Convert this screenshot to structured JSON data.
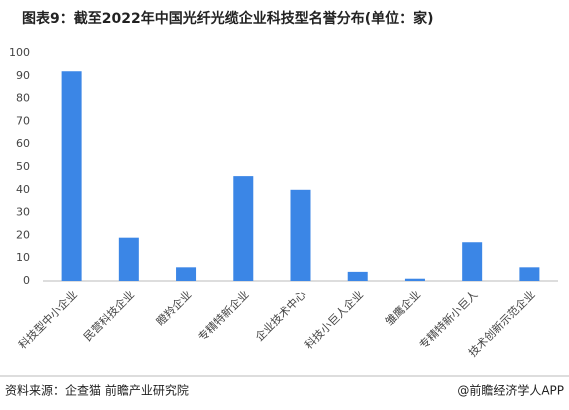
{
  "chart_data": {
    "type": "bar",
    "title": "图表9：截至2022年中国光纤光缆企业科技型名誉分布(单位：家)",
    "categories": [
      "科技型中小企业",
      "民营科技企业",
      "瞪羚企业",
      "专精特新企业",
      "企业技术中心",
      "科技小巨人企业",
      "雏鹰企业",
      "专精特新小巨人",
      "技术创新示范企业"
    ],
    "values": [
      92,
      19,
      6,
      46,
      40,
      4,
      1,
      17,
      6
    ],
    "color": "#3b86e6",
    "ylim": [
      0,
      100
    ],
    "yticks": [
      0,
      10,
      20,
      30,
      40,
      50,
      60,
      70,
      80,
      90,
      100
    ],
    "grid": false
  },
  "footer": {
    "source": "资料来源：企查猫 前瞻产业研究院",
    "brand": "@前瞻经济学人APP"
  }
}
